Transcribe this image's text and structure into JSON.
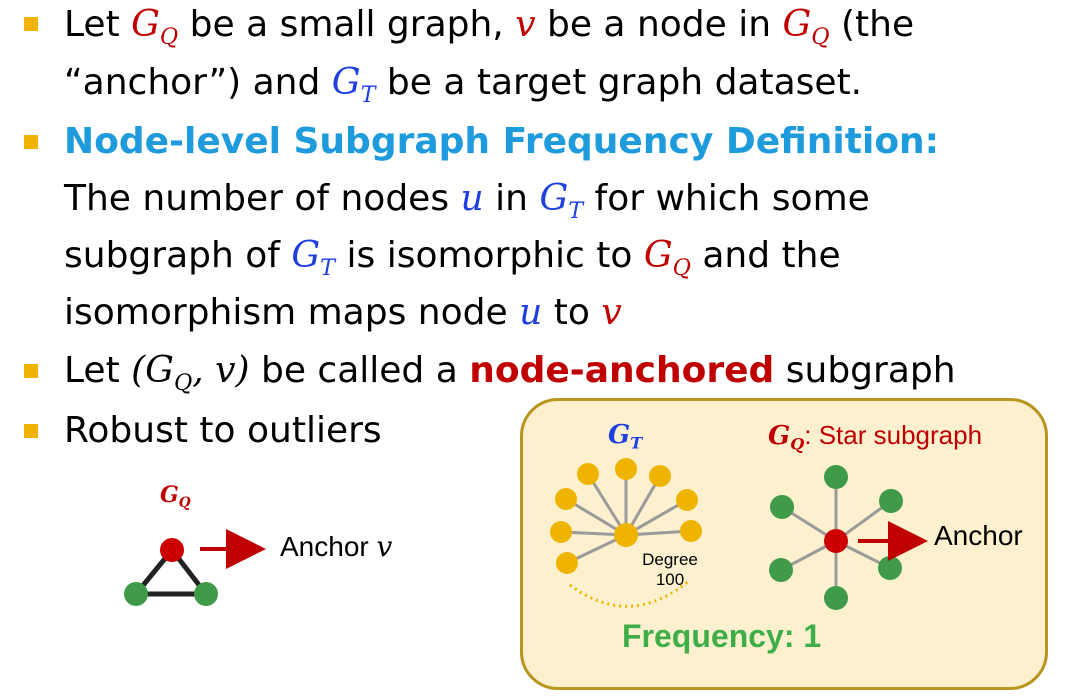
{
  "bullets": [
    {
      "line1": {
        "p1": "Let ",
        "m1": "G",
        "s1": "Q",
        "p2": " be a small graph, ",
        "m2": "v",
        "p3": " be a node in ",
        "m3": "G",
        "s3": "Q",
        "p4": " (the"
      },
      "line2": {
        "p1": "“anchor”) and ",
        "m1": "G",
        "s1": "T",
        "p2": " be a target graph dataset."
      }
    },
    {
      "heading": "Node-level Subgraph Frequency Definition:",
      "line1": {
        "p1": "The number of nodes ",
        "m1": "u",
        "p2": " in ",
        "m2": "G",
        "s2": "T",
        "p3": " for which some"
      },
      "line2": {
        "p1": "subgraph of ",
        "m1": "G",
        "s1": "T",
        "p2": " is isomorphic to ",
        "m2": "G",
        "s2": "Q",
        "p3": " and the"
      },
      "line3": {
        "p1": "isomorphism maps node ",
        "m1": "u",
        "p2": " to ",
        "m2": "v"
      }
    },
    {
      "line1": {
        "p1": "Let ",
        "m1": "(G",
        "s1": "Q",
        "m1b": ", v)",
        "p2": " be called a ",
        "bold": "node-anchored",
        "p3": " subgraph"
      }
    },
    {
      "line1": {
        "p1": "Robust to outliers"
      }
    }
  ],
  "figure_left": {
    "label_main": "G",
    "label_sub": "Q",
    "anchor_text": "Anchor ",
    "anchor_var": "v"
  },
  "panel": {
    "gt_main": "G",
    "gt_sub": "T",
    "gq_main": "G",
    "gq_sub": "Q",
    "gq_text": ": Star subgraph",
    "degree_line1": "Degree",
    "degree_line2": "100",
    "anchor_text": "Anchor",
    "frequency": "Frequency: 1"
  },
  "colors": {
    "bullet": "#f0b400",
    "red": "#c00000",
    "blue": "#1f3fe0",
    "cyan": "#1e9bdc",
    "green_node": "#3f9a4a",
    "orange_node": "#f0b400",
    "edge_gray": "#9a9a9a",
    "panel_fill": "#fcf0cf",
    "panel_border": "#b8951f",
    "freq_green": "#3fae49"
  }
}
